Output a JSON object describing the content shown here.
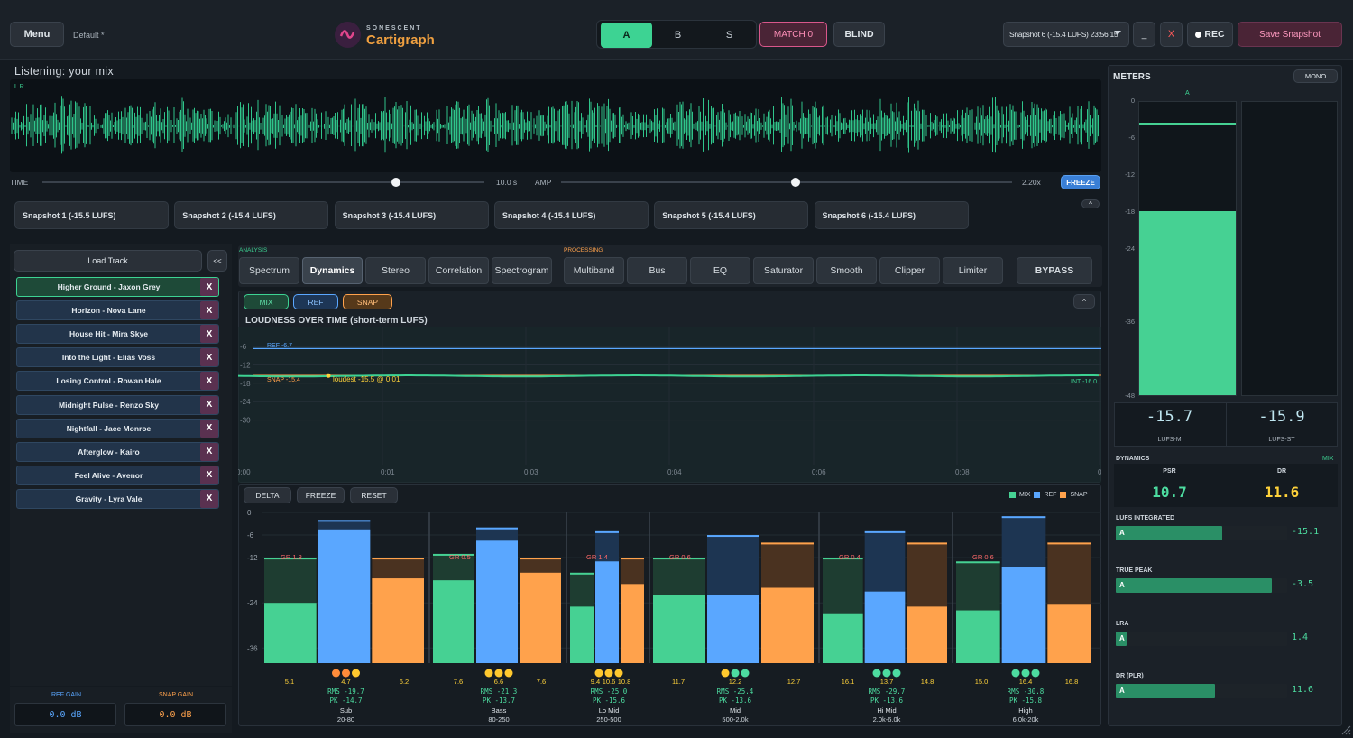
{
  "topbar": {
    "menu": "Menu",
    "preset": "Default",
    "preset_mark": "*",
    "brand_small": "SONESCENT",
    "brand": "Cartigraph",
    "seg_a": "A",
    "seg_b": "B",
    "seg_s": "S",
    "match": "MATCH 0",
    "blind": "BLIND",
    "snapshot_select": "Snapshot 6 (-15.4 LUFS) 23:56:15",
    "minimize": "_",
    "close": "X",
    "rec": "REC",
    "save": "Save Snapshot"
  },
  "waveform": {
    "title": "Listening: your mix",
    "lr": "L R",
    "time_label": "TIME",
    "time_value": "10.0 s",
    "time_pos": 0.8,
    "amp_label": "AMP",
    "amp_value": "2.20x",
    "amp_pos": 0.52,
    "freeze": "FREEZE"
  },
  "snapshots": [
    "Snapshot 1 (-15.5 LUFS)",
    "Snapshot 2 (-15.4 LUFS)",
    "Snapshot 3 (-15.4 LUFS)",
    "Snapshot 4 (-15.4 LUFS)",
    "Snapshot 5 (-15.4 LUFS)",
    "Snapshot 6 (-15.4 LUFS)"
  ],
  "snap_collapse": "^",
  "tracks": {
    "load": "Load Track",
    "collapse": "<<",
    "x": "X",
    "items": [
      "Higher Ground - Jaxon Grey",
      "Horizon - Nova Lane",
      "House Hit - Mira Skye",
      "Into the Light - Elias Voss",
      "Losing Control - Rowan Hale",
      "Midnight Pulse - Renzo Sky",
      "Nightfall - Jace Monroe",
      "Afterglow - Kairo",
      "Feel Alive - Avenor",
      "Gravity - Lyra Vale"
    ],
    "active_index": 0
  },
  "gains": {
    "ref_label": "REF GAIN",
    "ref_value": "0.0 dB",
    "snap_label": "SNAP GAIN",
    "snap_value": "0.0 dB"
  },
  "tabs": {
    "analysis_label": "ANALYSIS",
    "processing_label": "PROCESSING",
    "analysis": [
      "Spectrum",
      "Dynamics",
      "Stereo",
      "Correlation",
      "Spectrogram"
    ],
    "processing": [
      "Multiband",
      "Bus",
      "EQ",
      "Saturator",
      "Smooth",
      "Clipper",
      "Limiter"
    ],
    "bypass": "BYPASS",
    "active": "Dynamics"
  },
  "loudness": {
    "chip_mix": "MIX",
    "chip_ref": "REF",
    "chip_snap": "SNAP",
    "collapse": "^",
    "title": "LOUDNESS OVER TIME (short-term LUFS)",
    "y_ticks": [
      "-6",
      "-12",
      "-18",
      "-24",
      "-30"
    ],
    "x_ticks": [
      "0:00",
      "0:01",
      "0:03",
      "0:04",
      "0:06",
      "0:08",
      "0:"
    ],
    "ref_label": "REF -6.7",
    "snap_label": "SNAP -15.4",
    "int_label": "INT -16.0",
    "loudest": "loudest -15.5 @ 0:01"
  },
  "band_controls": {
    "delta": "DELTA",
    "freeze": "FREEZE",
    "reset": "RESET",
    "legend_mix": "MIX",
    "legend_ref": "REF",
    "legend_snap": "SNAP"
  },
  "chart_data": {
    "type": "bar",
    "ylim": [
      0,
      -40
    ],
    "y_ticks": [
      "0",
      "-6",
      "-12",
      "-24",
      "-36"
    ],
    "bands": [
      {
        "name": "Sub",
        "range": "20-80",
        "gr": "GR 1.8",
        "center": "4.7",
        "left": "5.1",
        "right": "6.2",
        "rms": "RMS -19.7",
        "pk": "PK -14.7",
        "mix": {
          "rms": -24,
          "pk": -12
        },
        "ref": {
          "rms": -4.5,
          "pk": -2
        },
        "snap": {
          "rms": -17.5,
          "pk": -12
        },
        "dots": [
          "#ff8c3a",
          "#ff8c3a",
          "#ffc82e"
        ]
      },
      {
        "name": "Bass",
        "range": "80-250",
        "gr": "GR 0.5",
        "center": "6.6",
        "left": "7.6",
        "right": "7.6",
        "rms": "RMS -21.3",
        "pk": "PK -13.7",
        "mix": {
          "rms": -18,
          "pk": -11
        },
        "ref": {
          "rms": -7.5,
          "pk": -4
        },
        "snap": {
          "rms": -16,
          "pk": -12
        },
        "dots": [
          "#ffc82e",
          "#ffc82e",
          "#ffc82e"
        ]
      },
      {
        "name": "Lo Mid",
        "range": "250-500",
        "gr": "GR 1.4",
        "center": "10.6",
        "left": "9.4",
        "right": "10.8",
        "rms": "RMS -25.0",
        "pk": "PK -15.6",
        "mix": {
          "rms": -25,
          "pk": -16
        },
        "ref": {
          "rms": -13,
          "pk": -5
        },
        "snap": {
          "rms": -19,
          "pk": -12
        },
        "dots": [
          "#ffc82e",
          "#ffc82e",
          "#ffc82e"
        ]
      },
      {
        "name": "Mid",
        "range": "500-2.0k",
        "gr": "GR 0.6",
        "center": "12.2",
        "left": "11.7",
        "right": "12.7",
        "rms": "RMS -25.4",
        "pk": "PK -13.6",
        "mix": {
          "rms": -22,
          "pk": -12
        },
        "ref": {
          "rms": -22,
          "pk": -6
        },
        "snap": {
          "rms": -20,
          "pk": -8
        },
        "dots": [
          "#ffc82e",
          "#4ddca0",
          "#4ddca0"
        ]
      },
      {
        "name": "Hi Mid",
        "range": "2.0k-6.0k",
        "gr": "GR 0.4",
        "center": "13.7",
        "left": "16.1",
        "right": "14.8",
        "rms": "RMS -29.7",
        "pk": "PK -13.6",
        "mix": {
          "rms": -27,
          "pk": -12
        },
        "ref": {
          "rms": -21,
          "pk": -5
        },
        "snap": {
          "rms": -25,
          "pk": -8
        },
        "dots": [
          "#4ddca0",
          "#4ddca0",
          "#4ddca0"
        ]
      },
      {
        "name": "High",
        "range": "6.0k-20k",
        "gr": "GR 0.6",
        "center": "16.4",
        "left": "15.0",
        "right": "16.8",
        "rms": "RMS -30.8",
        "pk": "PK -15.8",
        "mix": {
          "rms": -26,
          "pk": -13
        },
        "ref": {
          "rms": -14.5,
          "pk": -1
        },
        "snap": {
          "rms": -24.5,
          "pk": -8
        },
        "dots": [
          "#4ddca0",
          "#4ddca0",
          "#4ddca0"
        ]
      }
    ]
  },
  "meters": {
    "title": "METERS",
    "mono": "MONO",
    "channel_label": "A",
    "scale": [
      "0",
      "-6",
      "-12",
      "-18",
      "-24",
      "-36",
      "-48"
    ],
    "level": -18,
    "peak": -4,
    "lufs_m": "-15.7",
    "lufs_m_label": "LUFS-M",
    "lufs_st": "-15.9",
    "lufs_st_label": "LUFS-ST",
    "dynamics_label": "DYNAMICS",
    "mix_tag": "MIX",
    "psr_label": "PSR",
    "psr": "10.7",
    "dr_label": "DR",
    "dr": "11.6",
    "metrics": [
      {
        "label": "LUFS INTEGRATED",
        "value": "-15.1",
        "fill": 0.62
      },
      {
        "label": "TRUE PEAK",
        "value": "-3.5",
        "fill": 0.91
      },
      {
        "label": "LRA",
        "value": "1.4",
        "fill": 0.06
      },
      {
        "label": "DR (PLR)",
        "value": "11.6",
        "fill": 0.58
      }
    ],
    "metric_tag": "A"
  },
  "colors": {
    "mix": "#46d193",
    "ref": "#5aa7ff",
    "snap": "#ffa24c",
    "accent": "#4ddca0"
  }
}
